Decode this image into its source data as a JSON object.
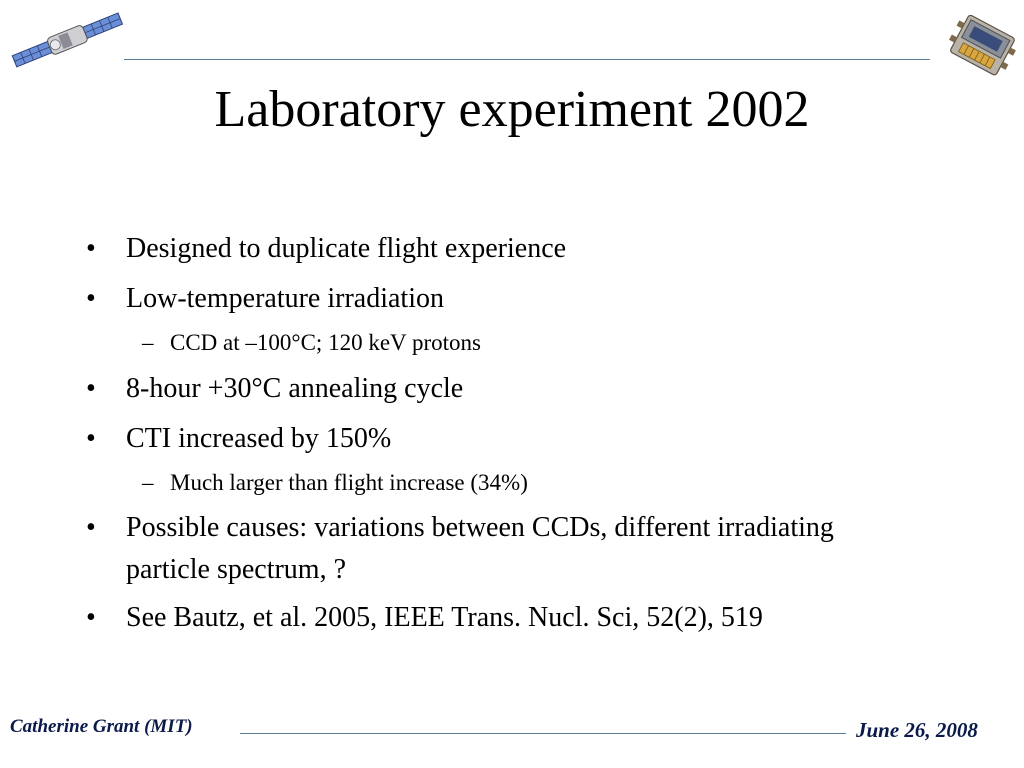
{
  "slide": {
    "title": "Laboratory experiment 2002",
    "bullets": [
      {
        "text": "Designed to duplicate flight experience"
      },
      {
        "text": "Low-temperature irradiation",
        "sub": "CCD at –100°C; 120 keV protons"
      },
      {
        "text": "8-hour +30°C annealing cycle"
      },
      {
        "text": "CTI increased by 150%",
        "sub": "Much larger than flight increase (34%)"
      },
      {
        "text": "Possible causes: variations between CCDs, different irradiating particle spectrum, ?"
      },
      {
        "text": "See Bautz, et al. 2005, IEEE Trans. Nucl. Sci, 52(2), 519"
      }
    ],
    "bullet_glyph": "•",
    "sub_glyph": "–"
  },
  "footer": {
    "author": "Catherine Grant (MIT)",
    "date": "June 26, 2008"
  },
  "logos": {
    "left": "satellite-icon",
    "right": "ccd-chip-icon"
  },
  "colors": {
    "rule": "#5b7f99",
    "footer_text": "#0b1a4a"
  }
}
